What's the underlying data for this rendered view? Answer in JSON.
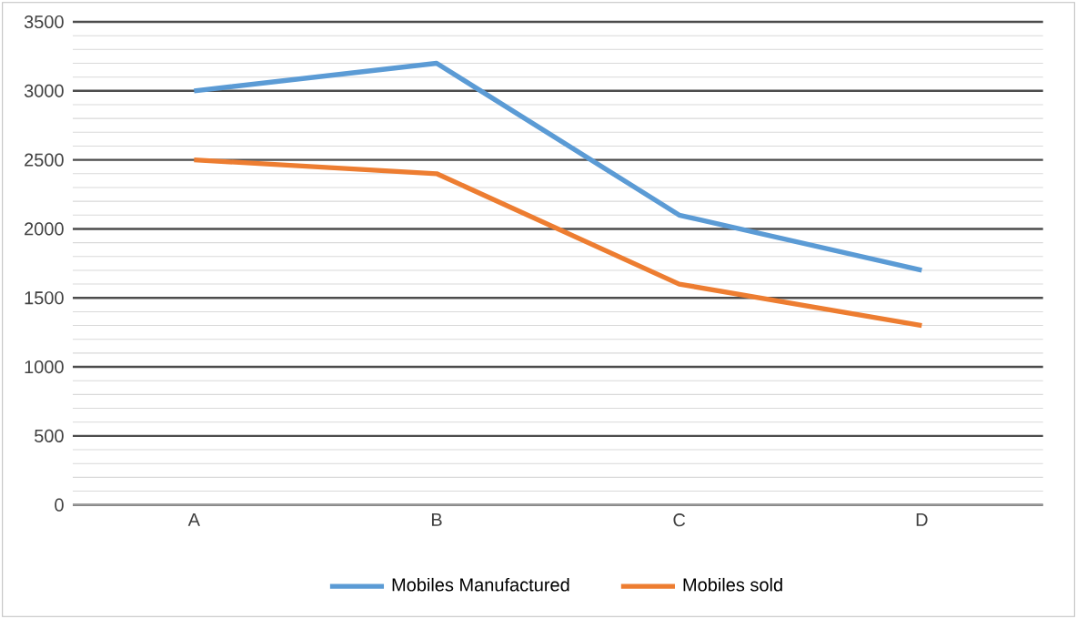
{
  "chart_data": {
    "type": "line",
    "categories": [
      "A",
      "B",
      "C",
      "D"
    ],
    "series": [
      {
        "name": "Mobiles Manufactured",
        "color": "#5b9bd5",
        "values": [
          3000,
          3200,
          2100,
          1700
        ]
      },
      {
        "name": "Mobiles sold",
        "color": "#ed7d31",
        "values": [
          2500,
          2400,
          1600,
          1300
        ]
      }
    ],
    "ylim": [
      0,
      3500
    ],
    "yticks": [
      0,
      500,
      1000,
      1500,
      2000,
      2500,
      3000,
      3500
    ],
    "grid": "y",
    "legend": "bottom",
    "marker": "none",
    "line_style": "solid"
  }
}
